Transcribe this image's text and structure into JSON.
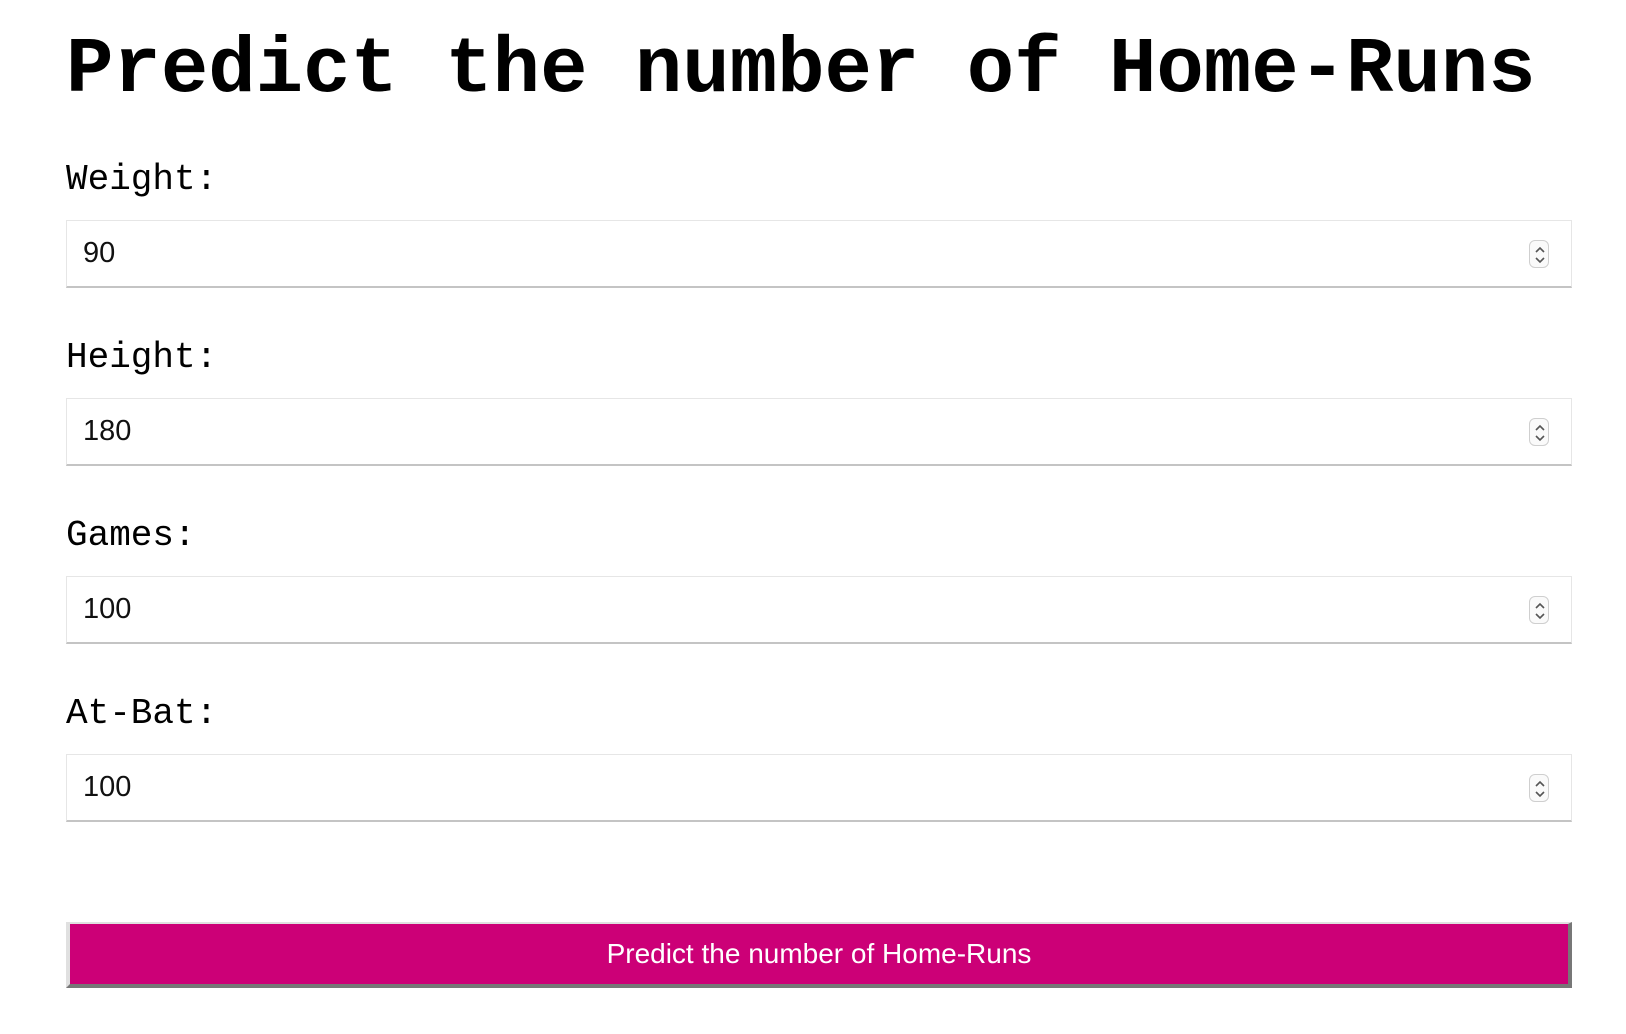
{
  "page": {
    "title": "Predict the number of Home-Runs"
  },
  "form": {
    "fields": [
      {
        "label": "Weight:",
        "value": "90"
      },
      {
        "label": "Height:",
        "value": "180"
      },
      {
        "label": "Games:",
        "value": "100"
      },
      {
        "label": "At-Bat:",
        "value": "100"
      }
    ],
    "submit_label": "Predict the number of Home-Runs"
  },
  "icons": {
    "stepper": "stepper-arrows-icon"
  },
  "colors": {
    "button_background": "#cc0077",
    "button_text": "#ffffff",
    "text": "#000000"
  }
}
